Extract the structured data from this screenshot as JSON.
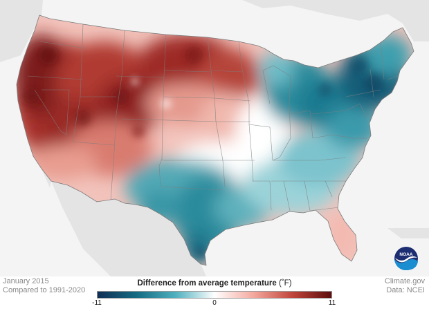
{
  "title": "January 2015",
  "subtitle": "Compared to 1991-2020",
  "legend": {
    "title": "Difference from average temperature",
    "unit": "(˚F)",
    "min_label": "-11",
    "mid_label": "0",
    "max_label": "11",
    "min": -11,
    "max": 11,
    "colors": [
      "#0f2f55",
      "#146b82",
      "#4fb0be",
      "#ffffff",
      "#f4a99e",
      "#c0453b",
      "#5c0d0d"
    ]
  },
  "credits": {
    "line1": "Climate.gov",
    "line2": "Data: NCEI"
  },
  "logo_text": "NOAA",
  "colors": {
    "land_outside": "#e6e6e6",
    "water": "#f6f6f6",
    "state_lines": "#8a8a8a"
  }
}
